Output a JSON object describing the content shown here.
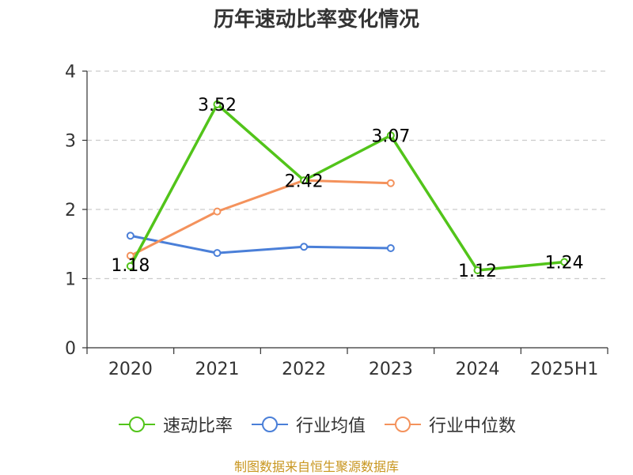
{
  "title": "历年速动比率变化情况",
  "source": "制图数据来自恒生聚源数据库",
  "colors": {
    "series_0": "#52c41a",
    "series_1": "#4a7fd8",
    "series_2": "#f4925c",
    "grid": "#cccccc",
    "axis": "#333333",
    "text": "#333333",
    "source": "#c8961f"
  },
  "chart_data": {
    "type": "line",
    "title": "历年速动比率变化情况",
    "categories": [
      "2020",
      "2021",
      "2022",
      "2023",
      "2024",
      "2025H1"
    ],
    "ylim": [
      0,
      4
    ],
    "yticks": [
      0,
      1,
      2,
      3,
      4
    ],
    "grid": "horizontal dashed",
    "legend_position": "bottom",
    "series": [
      {
        "name": "速动比率",
        "values": [
          1.18,
          3.52,
          2.42,
          3.07,
          1.12,
          1.24
        ],
        "labels": [
          "1.18",
          "3.52",
          "2.42",
          "3.07",
          "1.12",
          "1.24"
        ]
      },
      {
        "name": "行业均值",
        "values": [
          1.62,
          1.37,
          1.46,
          1.44,
          null,
          null
        ]
      },
      {
        "name": "行业中位数",
        "values": [
          1.33,
          1.97,
          2.42,
          2.38,
          null,
          null
        ]
      }
    ]
  }
}
